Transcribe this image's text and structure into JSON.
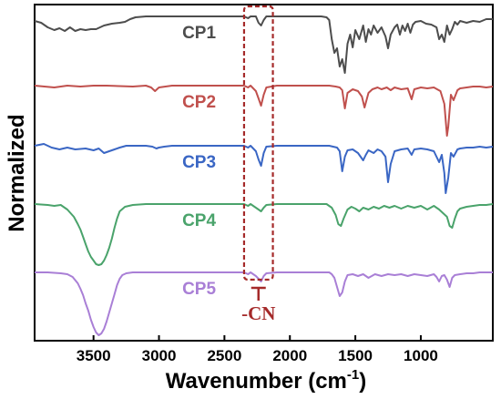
{
  "chart_data": {
    "type": "line",
    "xlabel": "Wavenumber (cm",
    "xlabel_superscript": "-1",
    "xlabel_suffix": ")",
    "ylabel": "Normalized",
    "xlim": [
      3950,
      450
    ],
    "x_reversed": true,
    "x_ticks": [
      3500,
      3000,
      2500,
      2000,
      1500,
      1000
    ],
    "x_tick_labels": [
      "3500",
      "3000",
      "2500",
      "2000",
      "1500",
      "1000"
    ],
    "y_ticks_shown": false,
    "legend": "inline-labels",
    "annotation": {
      "label": "-CN",
      "x_range": [
        2350,
        2130
      ],
      "color": "#a52a2a"
    },
    "series": [
      {
        "name": "CP1",
        "color": "#4d4d4d",
        "baseline": 18,
        "x": [
          3950,
          3900,
          3850,
          3800,
          3760,
          3720,
          3680,
          3640,
          3600,
          3560,
          3520,
          3480,
          3420,
          3360,
          3300,
          3260,
          3220,
          3180,
          3100,
          3000,
          2900,
          2700,
          2500,
          2350,
          2320,
          2300,
          2260,
          2240,
          2220,
          2200,
          2180,
          2100,
          1900,
          1760,
          1720,
          1700,
          1680,
          1660,
          1640,
          1620,
          1600,
          1580,
          1560,
          1540,
          1520,
          1500,
          1470,
          1440,
          1420,
          1400,
          1380,
          1360,
          1330,
          1300,
          1270,
          1250,
          1230,
          1200,
          1180,
          1160,
          1140,
          1120,
          1100,
          1080,
          1060,
          1040,
          1000,
          960,
          920,
          880,
          860,
          840,
          820,
          800,
          780,
          760,
          740,
          720,
          700,
          650,
          600,
          550,
          500,
          450
        ],
        "y": [
          5,
          7,
          12,
          15,
          13,
          16,
          12,
          16,
          14,
          15,
          14,
          14,
          10,
          8,
          7,
          6,
          3,
          1,
          0,
          0,
          0,
          0,
          0,
          0,
          2,
          0,
          0,
          7,
          10,
          4,
          0,
          0,
          0,
          0,
          1,
          4,
          25,
          40,
          35,
          55,
          47,
          62,
          30,
          20,
          34,
          15,
          25,
          10,
          28,
          14,
          20,
          10,
          18,
          12,
          22,
          35,
          20,
          12,
          9,
          20,
          10,
          16,
          8,
          18,
          9,
          6,
          5,
          8,
          9,
          12,
          25,
          20,
          28,
          10,
          20,
          14,
          6,
          9,
          5,
          7,
          5,
          6,
          3,
          3
        ]
      },
      {
        "name": "CP2",
        "color": "#c0504d",
        "baseline": 94,
        "x": [
          3950,
          3800,
          3700,
          3600,
          3500,
          3400,
          3200,
          3100,
          3060,
          3030,
          3000,
          2950,
          2900,
          2700,
          2500,
          2350,
          2320,
          2300,
          2260,
          2240,
          2220,
          2200,
          2180,
          2100,
          1900,
          1700,
          1650,
          1620,
          1600,
          1580,
          1560,
          1520,
          1480,
          1450,
          1430,
          1400,
          1370,
          1330,
          1300,
          1260,
          1230,
          1200,
          1150,
          1100,
          1070,
          1050,
          1000,
          950,
          900,
          850,
          820,
          800,
          790,
          770,
          750,
          720,
          700,
          650,
          600,
          550,
          500,
          450
        ],
        "y": [
          0,
          2,
          0,
          1,
          0,
          0,
          1,
          0,
          2,
          6,
          2,
          1,
          0,
          0,
          0,
          0,
          2,
          0,
          6,
          14,
          22,
          10,
          2,
          0,
          0,
          0,
          1,
          2,
          5,
          25,
          8,
          4,
          6,
          12,
          24,
          8,
          4,
          2,
          4,
          2,
          5,
          2,
          4,
          3,
          15,
          4,
          2,
          3,
          2,
          6,
          20,
          55,
          45,
          10,
          16,
          5,
          3,
          2,
          1,
          1,
          2,
          1
        ]
      },
      {
        "name": "CP3",
        "color": "#3a66c4",
        "baseline": 160,
        "x": [
          3950,
          3880,
          3820,
          3760,
          3700,
          3640,
          3560,
          3500,
          3460,
          3420,
          3380,
          3340,
          3300,
          3250,
          3200,
          3100,
          3050,
          3020,
          3000,
          2960,
          2900,
          2800,
          2700,
          2500,
          2350,
          2320,
          2300,
          2260,
          2240,
          2220,
          2200,
          2180,
          2100,
          1900,
          1700,
          1640,
          1620,
          1600,
          1580,
          1560,
          1520,
          1480,
          1440,
          1420,
          1400,
          1360,
          1330,
          1300,
          1270,
          1250,
          1230,
          1200,
          1150,
          1100,
          1070,
          1050,
          1000,
          950,
          900,
          860,
          840,
          820,
          810,
          790,
          770,
          750,
          720,
          700,
          650,
          600,
          550,
          500,
          450
        ],
        "y": [
          0,
          -2,
          2,
          4,
          2,
          4,
          3,
          5,
          3,
          8,
          6,
          4,
          2,
          0,
          0,
          0,
          1,
          3,
          2,
          1,
          0,
          0,
          0,
          0,
          0,
          2,
          0,
          6,
          15,
          22,
          8,
          1,
          0,
          0,
          0,
          2,
          6,
          28,
          12,
          5,
          4,
          8,
          16,
          10,
          5,
          8,
          4,
          6,
          12,
          40,
          20,
          6,
          4,
          3,
          10,
          4,
          3,
          4,
          6,
          18,
          10,
          30,
          52,
          35,
          8,
          12,
          4,
          3,
          2,
          2,
          1,
          2,
          1
        ]
      },
      {
        "name": "CP4",
        "color": "#4aa36b",
        "baseline": 224,
        "x": [
          3950,
          3850,
          3800,
          3750,
          3700,
          3650,
          3620,
          3600,
          3580,
          3560,
          3540,
          3520,
          3500,
          3480,
          3460,
          3440,
          3420,
          3400,
          3380,
          3360,
          3340,
          3320,
          3300,
          3260,
          3200,
          3100,
          3000,
          2900,
          2700,
          2500,
          2350,
          2320,
          2300,
          2260,
          2240,
          2220,
          2200,
          2180,
          2100,
          1900,
          1800,
          1720,
          1680,
          1650,
          1630,
          1610,
          1590,
          1560,
          1530,
          1500,
          1470,
          1440,
          1400,
          1360,
          1320,
          1280,
          1240,
          1200,
          1150,
          1100,
          1050,
          1000,
          950,
          900,
          860,
          830,
          800,
          780,
          760,
          740,
          720,
          700,
          650,
          600,
          550,
          500,
          450
        ],
        "y": [
          0,
          1,
          2,
          1,
          6,
          14,
          22,
          28,
          36,
          44,
          52,
          58,
          62,
          66,
          67,
          66,
          62,
          56,
          48,
          38,
          26,
          16,
          8,
          3,
          1,
          0,
          0,
          0,
          0,
          0,
          0,
          2,
          0,
          4,
          6,
          8,
          4,
          1,
          0,
          0,
          0,
          0,
          4,
          12,
          22,
          24,
          16,
          6,
          3,
          5,
          8,
          4,
          6,
          3,
          5,
          2,
          4,
          2,
          5,
          2,
          4,
          2,
          6,
          2,
          6,
          10,
          14,
          24,
          26,
          16,
          8,
          5,
          3,
          2,
          1,
          1,
          0
        ]
      },
      {
        "name": "CP5",
        "color": "#a97fd6",
        "baseline": 299,
        "x": [
          3950,
          3850,
          3750,
          3700,
          3660,
          3620,
          3600,
          3580,
          3560,
          3540,
          3520,
          3500,
          3480,
          3460,
          3440,
          3420,
          3400,
          3380,
          3360,
          3340,
          3320,
          3300,
          3280,
          3250,
          3200,
          3100,
          3000,
          2900,
          2700,
          2500,
          2350,
          2320,
          2300,
          2260,
          2240,
          2220,
          2200,
          2180,
          2100,
          1900,
          1700,
          1680,
          1660,
          1640,
          1620,
          1600,
          1580,
          1560,
          1520,
          1480,
          1440,
          1400,
          1350,
          1300,
          1250,
          1200,
          1150,
          1100,
          1050,
          1000,
          950,
          900,
          880,
          860,
          840,
          820,
          800,
          780,
          760,
          740,
          700,
          650,
          600,
          550,
          500,
          450
        ],
        "y": [
          0,
          0,
          1,
          2,
          5,
          12,
          18,
          25,
          34,
          42,
          52,
          60,
          66,
          69,
          67,
          62,
          54,
          44,
          34,
          24,
          14,
          7,
          3,
          1,
          0,
          0,
          0,
          0,
          0,
          0,
          0,
          2,
          0,
          4,
          7,
          10,
          4,
          1,
          0,
          0,
          0,
          2,
          6,
          16,
          26,
          22,
          10,
          3,
          2,
          4,
          2,
          6,
          2,
          4,
          2,
          3,
          2,
          4,
          2,
          3,
          4,
          2,
          5,
          10,
          4,
          3,
          8,
          16,
          6,
          3,
          2,
          1,
          1,
          0,
          0,
          0
        ]
      }
    ],
    "series_label_x": 2850
  }
}
